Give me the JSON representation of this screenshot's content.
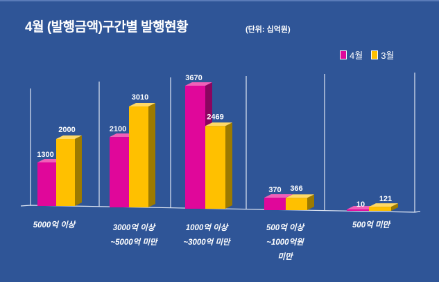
{
  "title": "4월 (발행금액)구간별 발행현황",
  "unit": "(단위: 십억원)",
  "chart_data": {
    "type": "bar",
    "title": "4월 (발행금액)구간별 발행현황",
    "unit": "(단위: 십억원)",
    "categories": [
      [
        "5000억 이상"
      ],
      [
        "3000억 이상",
        "~5000억 미만"
      ],
      [
        "1000억 이상",
        "~3000억 미만"
      ],
      [
        "500억 이상",
        "~1000억원",
        "미만"
      ],
      [
        "500억 미만"
      ]
    ],
    "series": [
      {
        "name": "4월",
        "color": "#E0079A",
        "values": [
          1300,
          2100,
          3670,
          370,
          10
        ]
      },
      {
        "name": "3월",
        "color": "#FFC000",
        "values": [
          2000,
          3010,
          2469,
          366,
          121
        ]
      }
    ],
    "legend_position": "top-right",
    "grid": false
  }
}
